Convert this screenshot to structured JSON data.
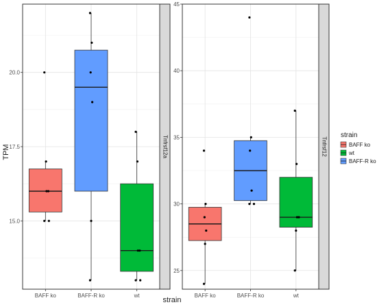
{
  "chart_data": [
    {
      "type": "box",
      "strip_label": "Tnfrsf12a",
      "categories": [
        "BAFF ko",
        "BAFF-R ko",
        "wt"
      ],
      "ylabel": "TPM",
      "xlabel": "strain",
      "ylim": [
        12.7,
        22.3
      ],
      "yticks": [
        15.0,
        17.5,
        20.0
      ],
      "ytick_labels": [
        "15.0",
        "17.5",
        "20.0"
      ],
      "grid": true,
      "boxes": [
        {
          "category": "BAFF ko",
          "color": "#F8766D",
          "q1": 15.3,
          "median": 16.0,
          "q3": 16.75,
          "whisker_low": 15.0,
          "whisker_high": 17.0,
          "points": [
            15.0,
            15.0,
            16.0,
            16.0,
            17.0,
            20.0
          ]
        },
        {
          "category": "BAFF-R ko",
          "color": "#619CFF",
          "q1": 16.0,
          "median": 19.5,
          "q3": 20.75,
          "whisker_low": 13.0,
          "whisker_high": 22.0,
          "points": [
            13.0,
            15.0,
            19.0,
            20.0,
            21.0,
            22.0
          ]
        },
        {
          "category": "wt",
          "color": "#00BA38",
          "q1": 13.3,
          "median": 14.0,
          "q3": 16.25,
          "whisker_low": 13.0,
          "whisker_high": 18.0,
          "points": [
            13.0,
            13.0,
            14.0,
            14.0,
            17.0,
            18.0
          ]
        }
      ]
    },
    {
      "type": "box",
      "strip_label": "Tnfrsf12",
      "categories": [
        "BAFF ko",
        "BAFF-R ko",
        "wt"
      ],
      "ylabel": "",
      "xlabel": "strain",
      "ylim": [
        23.6,
        45.0
      ],
      "yticks": [
        25,
        30,
        35,
        40,
        45
      ],
      "ytick_labels": [
        "25",
        "30",
        "35",
        "40",
        "45"
      ],
      "grid": true,
      "boxes": [
        {
          "category": "BAFF ko",
          "color": "#F8766D",
          "q1": 27.25,
          "median": 28.5,
          "q3": 29.75,
          "whisker_low": 24.0,
          "whisker_high": 30.0,
          "points": [
            24.0,
            27.0,
            28.0,
            29.0,
            30.0,
            34.0
          ]
        },
        {
          "category": "BAFF-R ko",
          "color": "#619CFF",
          "q1": 30.25,
          "median": 32.5,
          "q3": 34.75,
          "whisker_low": 30.0,
          "whisker_high": 35.0,
          "points": [
            30.0,
            30.0,
            31.0,
            34.0,
            35.0,
            44.0
          ]
        },
        {
          "category": "wt",
          "color": "#00BA38",
          "q1": 28.25,
          "median": 29.0,
          "q3": 32.0,
          "whisker_low": 25.0,
          "whisker_high": 37.0,
          "points": [
            25.0,
            28.0,
            29.0,
            29.0,
            33.0,
            37.0
          ]
        }
      ]
    }
  ],
  "axis_title_x": "strain",
  "axis_title_y": "TPM",
  "legend": {
    "title": "strain",
    "position": "right",
    "items": [
      {
        "label": "BAFF ko",
        "color": "#F8766D"
      },
      {
        "label": "wt",
        "color": "#00BA38"
      },
      {
        "label": "BAFF-R ko",
        "color": "#619CFF"
      }
    ]
  }
}
